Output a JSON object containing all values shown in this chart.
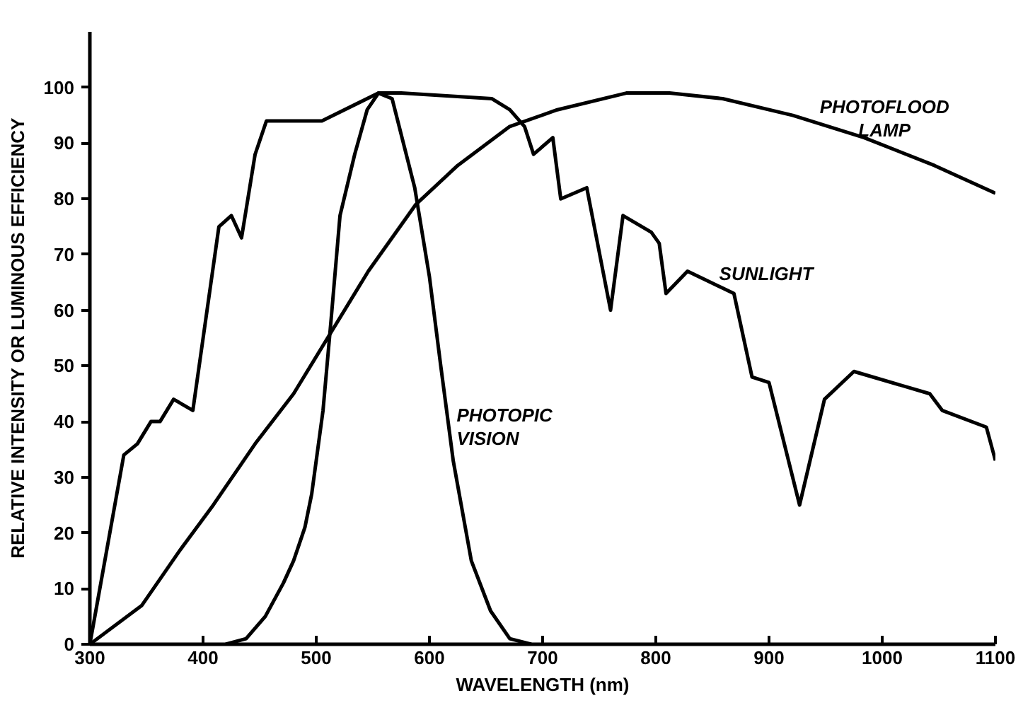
{
  "chart_data": {
    "type": "line",
    "xlabel": "WAVELENGTH (nm)",
    "ylabel": "RELATIVE INTENSITY OR LUMINOUS EFFICIENCY",
    "xlim": [
      300,
      1100
    ],
    "ylim": [
      0,
      110
    ],
    "xticks": [
      300,
      400,
      500,
      600,
      700,
      800,
      900,
      1000,
      1100
    ],
    "yticks": [
      0,
      10,
      20,
      30,
      40,
      50,
      60,
      70,
      80,
      90,
      100
    ],
    "grid": false,
    "line_style": "solid",
    "series": [
      {
        "name": "SUNLIGHT",
        "color": "#000000",
        "x": [
          300,
          330,
          342,
          354,
          362,
          374,
          391,
          414,
          425,
          434,
          446,
          456,
          505,
          555,
          575,
          655,
          671,
          684,
          692,
          709,
          716,
          739,
          760,
          771,
          796,
          803,
          809,
          828,
          869,
          885,
          900,
          927,
          949,
          975,
          1042,
          1053,
          1092,
          1100
        ],
        "values": [
          0,
          34,
          36,
          40,
          40,
          44,
          42,
          75,
          77,
          73,
          88,
          94,
          94,
          99,
          99,
          98,
          96,
          93,
          88,
          91,
          80,
          82,
          60,
          77,
          74,
          72,
          63,
          67,
          63,
          48,
          47,
          25,
          44,
          49,
          45,
          42,
          39,
          33
        ]
      },
      {
        "name": "PHOTOPIC VISION",
        "color": "#000000",
        "x": [
          420,
          438,
          455,
          471,
          480,
          490,
          496,
          506,
          513,
          521,
          534,
          545,
          555,
          567,
          587,
          600,
          610,
          621,
          637,
          654,
          671,
          690
        ],
        "values": [
          0,
          1,
          5,
          11,
          15,
          21,
          27,
          42,
          58,
          77,
          88,
          96,
          99,
          98,
          82,
          66,
          50,
          33,
          15,
          6,
          1,
          0
        ]
      },
      {
        "name": "PHOTOFLOOD LAMP",
        "color": "#000000",
        "x": [
          300,
          346,
          380,
          409,
          446,
          480,
          510,
          546,
          588,
          625,
          671,
          713,
          774,
          812,
          859,
          921,
          984,
          1046,
          1100
        ],
        "values": [
          0,
          7,
          17,
          25,
          36,
          45,
          55,
          67,
          79,
          86,
          93,
          96,
          99,
          99,
          98,
          95,
          91,
          86,
          81
        ]
      }
    ]
  }
}
